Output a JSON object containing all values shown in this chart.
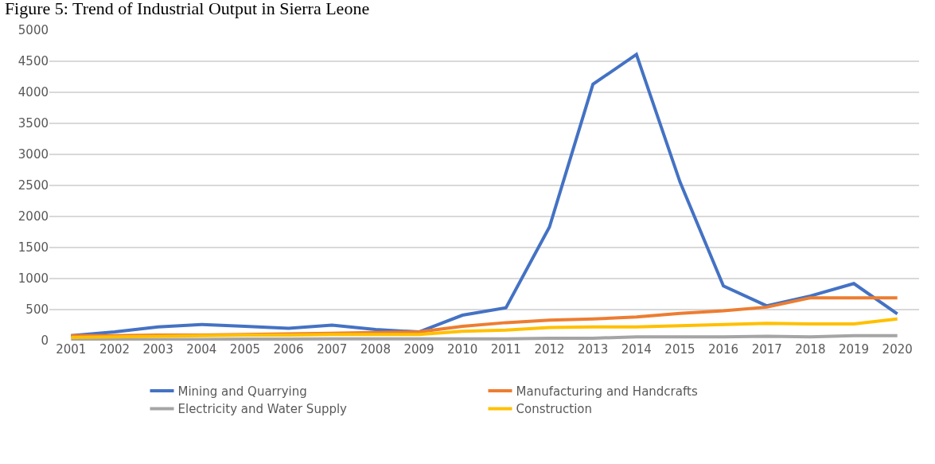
{
  "chart_data": {
    "type": "line",
    "title": "Figure 5: Trend of Industrial Output in Sierra Leone",
    "categories": [
      "2001",
      "2002",
      "2003",
      "2004",
      "2005",
      "2006",
      "2007",
      "2008",
      "2009",
      "2010",
      "2011",
      "2012",
      "2013",
      "2014",
      "2015",
      "2016",
      "2017",
      "2018",
      "2019",
      "2020"
    ],
    "series": [
      {
        "name": "Mining and Quarrying",
        "color": "#4472c4",
        "values": [
          80,
          140,
          220,
          260,
          230,
          200,
          250,
          180,
          140,
          410,
          530,
          1830,
          4130,
          4610,
          2560,
          880,
          560,
          720,
          920,
          430
        ]
      },
      {
        "name": "Manufacturing and Handcrafts",
        "color": "#ed7d31",
        "values": [
          80,
          80,
          90,
          90,
          100,
          110,
          120,
          130,
          140,
          230,
          290,
          330,
          350,
          380,
          440,
          480,
          540,
          690,
          690,
          690
        ]
      },
      {
        "name": "Electricity and Water Supply",
        "color": "#a5a5a5",
        "values": [
          20,
          20,
          20,
          20,
          25,
          25,
          30,
          30,
          30,
          30,
          30,
          40,
          40,
          60,
          60,
          60,
          70,
          60,
          80,
          80
        ]
      },
      {
        "name": "Construction",
        "color": "#ffc000",
        "values": [
          50,
          60,
          70,
          80,
          90,
          90,
          100,
          100,
          100,
          150,
          170,
          210,
          220,
          220,
          240,
          260,
          280,
          270,
          270,
          350
        ]
      }
    ],
    "ylim": [
      0,
      5000
    ],
    "yticks": [
      0,
      500,
      1000,
      1500,
      2000,
      2500,
      3000,
      3500,
      4000,
      4500,
      5000
    ],
    "grid": "y",
    "legend": "bottom",
    "marker": "none",
    "line_style": "solid"
  }
}
